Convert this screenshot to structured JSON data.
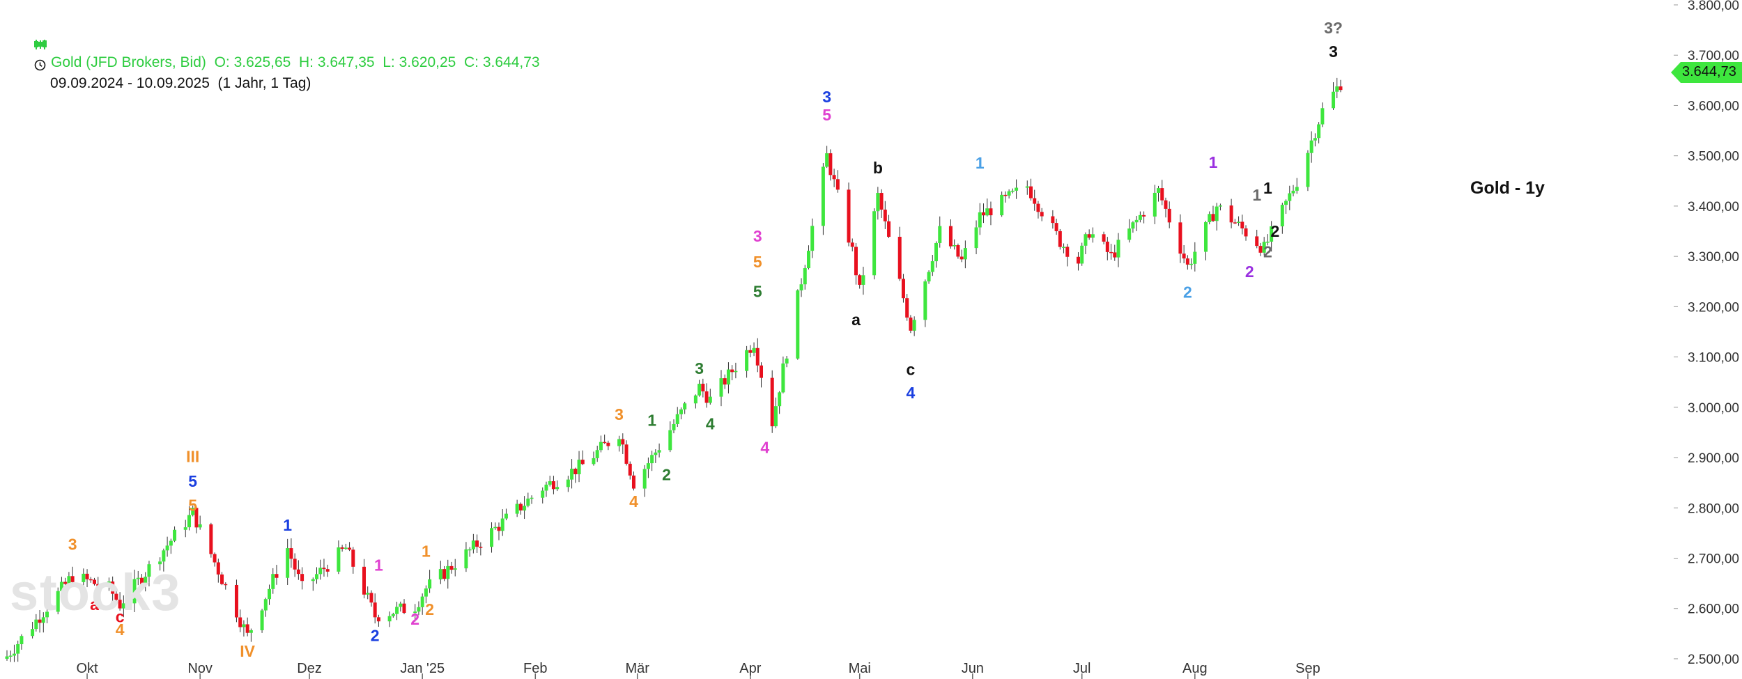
{
  "header": {
    "icon_chart": "candlestick-icon",
    "line1": "Gold (JFD Brokers, Bid)  O: 3.625,65  H: 3.647,35  L: 3.620,25  C: 3.644,73",
    "icon_clock": "clock-icon",
    "line2": "09.09.2024 - 10.09.2025  (1 Jahr, 1 Tag)"
  },
  "title_label": "Gold - 1y",
  "watermark": "stock3",
  "last_price_tag": "3.644,73",
  "colors": {
    "up": "#3ee63e",
    "down": "#e8101e",
    "header_green": "#2ecc40",
    "grid": "#999999"
  },
  "chart_data": {
    "type": "candlestick",
    "y_axis": {
      "ylim": [
        2475,
        3800
      ],
      "ticks": [
        "2.500,00",
        "2.600,00",
        "2.700,00",
        "2.800,00",
        "2.900,00",
        "3.000,00",
        "3.100,00",
        "3.200,00",
        "3.300,00",
        "3.400,00",
        "3.500,00",
        "3.600,00",
        "3.700,00",
        "3.800,00"
      ],
      "tick_values": [
        2500,
        2600,
        2700,
        2800,
        2900,
        3000,
        3100,
        3200,
        3300,
        3400,
        3500,
        3600,
        3700,
        3800
      ]
    },
    "x_axis": {
      "labels": [
        "Okt",
        "Nov",
        "Dez",
        "Jan '25",
        "Feb",
        "Mär",
        "Apr",
        "Mai",
        "Jun",
        "Jul",
        "Aug",
        "Sep"
      ],
      "label_dates": [
        "2024-10-01",
        "2024-11-01",
        "2024-12-01",
        "2025-01-01",
        "2025-02-01",
        "2025-03-01",
        "2025-04-01",
        "2025-05-01",
        "2025-06-01",
        "2025-07-01",
        "2025-08-01",
        "2025-09-01"
      ]
    },
    "anchors": [
      [
        "2024-09-09",
        2505
      ],
      [
        "2024-09-27",
        2665
      ],
      [
        "2024-10-07",
        2640
      ],
      [
        "2024-10-10",
        2608
      ],
      [
        "2024-10-30",
        2790
      ],
      [
        "2024-11-14",
        2545
      ],
      [
        "2024-11-25",
        2720
      ],
      [
        "2024-11-29",
        2640
      ],
      [
        "2024-12-11",
        2720
      ],
      [
        "2024-12-19",
        2585
      ],
      [
        "2024-12-30",
        2605
      ],
      [
        "2025-01-02",
        2640
      ],
      [
        "2025-02-03",
        2840
      ],
      [
        "2025-02-14",
        2885
      ],
      [
        "2025-02-24",
        2950
      ],
      [
        "2025-02-28",
        2850
      ],
      [
        "2025-03-05",
        2900
      ],
      [
        "2025-03-14",
        3000
      ],
      [
        "2025-03-18",
        3040
      ],
      [
        "2025-03-21",
        3015
      ],
      [
        "2025-04-02",
        3130
      ],
      [
        "2025-04-07",
        2970
      ],
      [
        "2025-04-22",
        3500
      ],
      [
        "2025-04-29",
        3310
      ],
      [
        "2025-05-01",
        3230
      ],
      [
        "2025-05-06",
        3420
      ],
      [
        "2025-05-15",
        3160
      ],
      [
        "2025-05-23",
        3350
      ],
      [
        "2025-05-29",
        3290
      ],
      [
        "2025-06-03",
        3380
      ],
      [
        "2025-06-16",
        3440
      ],
      [
        "2025-06-25",
        3330
      ],
      [
        "2025-06-30",
        3290
      ],
      [
        "2025-07-03",
        3350
      ],
      [
        "2025-07-09",
        3300
      ],
      [
        "2025-07-22",
        3430
      ],
      [
        "2025-07-30",
        3280
      ],
      [
        "2025-08-07",
        3400
      ],
      [
        "2025-08-20",
        3315
      ],
      [
        "2025-08-29",
        3450
      ],
      [
        "2025-09-05",
        3590
      ],
      [
        "2025-09-10",
        3645
      ]
    ],
    "wave_labels": [
      {
        "text": "3",
        "color": "#f0902a",
        "date": "2024-09-27",
        "price": 2728
      },
      {
        "text": "a",
        "color": "#e8101e",
        "date": "2024-10-03",
        "price": 2608
      },
      {
        "text": "c",
        "color": "#e8101e",
        "date": "2024-10-10",
        "price": 2584
      },
      {
        "text": "4",
        "color": "#f0902a",
        "date": "2024-10-10",
        "price": 2558
      },
      {
        "text": "III",
        "color": "#f0902a",
        "date": "2024-10-30",
        "price": 2902
      },
      {
        "text": "5",
        "color": "#1a3fe0",
        "date": "2024-10-30",
        "price": 2853
      },
      {
        "text": "5",
        "color": "#f0902a",
        "date": "2024-10-30",
        "price": 2805
      },
      {
        "text": "IV",
        "color": "#f0902a",
        "date": "2024-11-14",
        "price": 2515
      },
      {
        "text": "1",
        "color": "#1a3fe0",
        "date": "2024-11-25",
        "price": 2766
      },
      {
        "text": "2",
        "color": "#1a3fe0",
        "date": "2024-12-19",
        "price": 2546
      },
      {
        "text": "1",
        "color": "#e040d0",
        "date": "2024-12-20",
        "price": 2686
      },
      {
        "text": "2",
        "color": "#e040d0",
        "date": "2024-12-30",
        "price": 2579
      },
      {
        "text": "1",
        "color": "#f0902a",
        "date": "2025-01-02",
        "price": 2714
      },
      {
        "text": "2",
        "color": "#f0902a",
        "date": "2025-01-03",
        "price": 2598
      },
      {
        "text": "3",
        "color": "#f0902a",
        "date": "2025-02-24",
        "price": 2986
      },
      {
        "text": "1",
        "color": "#2e7d32",
        "date": "2025-03-05",
        "price": 2974
      },
      {
        "text": "4",
        "color": "#f0902a",
        "date": "2025-02-28",
        "price": 2813
      },
      {
        "text": "2",
        "color": "#2e7d32",
        "date": "2025-03-09",
        "price": 2866
      },
      {
        "text": "3",
        "color": "#2e7d32",
        "date": "2025-03-18",
        "price": 3077
      },
      {
        "text": "4",
        "color": "#2e7d32",
        "date": "2025-03-21",
        "price": 2967
      },
      {
        "text": "3",
        "color": "#e040d0",
        "date": "2025-04-03",
        "price": 3340
      },
      {
        "text": "5",
        "color": "#f0902a",
        "date": "2025-04-03",
        "price": 3289
      },
      {
        "text": "5",
        "color": "#2e7d32",
        "date": "2025-04-03",
        "price": 3230
      },
      {
        "text": "4",
        "color": "#e040d0",
        "date": "2025-04-05",
        "price": 2920
      },
      {
        "text": "3",
        "color": "#1a3fe0",
        "date": "2025-04-22",
        "price": 3617
      },
      {
        "text": "5",
        "color": "#e040d0",
        "date": "2025-04-22",
        "price": 3581
      },
      {
        "text": "b",
        "color": "#111111",
        "date": "2025-05-06",
        "price": 3476
      },
      {
        "text": "a",
        "color": "#111111",
        "date": "2025-04-30",
        "price": 3174
      },
      {
        "text": "c",
        "color": "#111111",
        "date": "2025-05-15",
        "price": 3075
      },
      {
        "text": "4",
        "color": "#1a3fe0",
        "date": "2025-05-15",
        "price": 3029
      },
      {
        "text": "1",
        "color": "#4aa0e6",
        "date": "2025-06-03",
        "price": 3486
      },
      {
        "text": "2",
        "color": "#4aa0e6",
        "date": "2025-07-30",
        "price": 3229
      },
      {
        "text": "1",
        "color": "#9a30e0",
        "date": "2025-08-06",
        "price": 3487
      },
      {
        "text": "2",
        "color": "#9a30e0",
        "date": "2025-08-16",
        "price": 3270
      },
      {
        "text": "1",
        "color": "#6a6a6a",
        "date": "2025-08-18",
        "price": 3422
      },
      {
        "text": "2",
        "color": "#6a6a6a",
        "date": "2025-08-21",
        "price": 3309
      },
      {
        "text": "1",
        "color": "#111111",
        "date": "2025-08-21",
        "price": 3436
      },
      {
        "text": "2",
        "color": "#111111",
        "date": "2025-08-23",
        "price": 3350
      },
      {
        "text": "3?",
        "color": "#6a6a6a",
        "date": "2025-09-08",
        "price": 3754
      },
      {
        "text": "3",
        "color": "#111111",
        "date": "2025-09-08",
        "price": 3707
      }
    ]
  }
}
